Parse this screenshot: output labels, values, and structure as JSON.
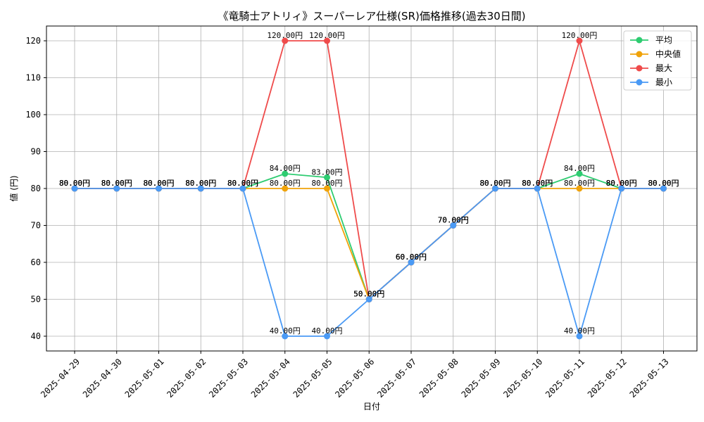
{
  "chart_data": {
    "type": "line",
    "title": "《竜騎士アトリィ》スーパーレア仕様(SR)価格推移(過去30日間)",
    "xlabel": "日付",
    "ylabel": "値 (円)",
    "ylim": [
      36,
      124
    ],
    "yticks": [
      40,
      50,
      60,
      70,
      80,
      90,
      100,
      110,
      120
    ],
    "grid": true,
    "legend_position": "top-right",
    "label_suffix": "円",
    "categories": [
      "2025-04-29",
      "2025-04-30",
      "2025-05-01",
      "2025-05-02",
      "2025-05-03",
      "2025-05-04",
      "2025-05-05",
      "2025-05-06",
      "2025-05-07",
      "2025-05-08",
      "2025-05-09",
      "2025-05-10",
      "2025-05-11",
      "2025-05-12",
      "2025-05-13"
    ],
    "series": [
      {
        "name": "平均",
        "color": "#2ecc71",
        "values": [
          80,
          80,
          80,
          80,
          80,
          84,
          83,
          50,
          60,
          70,
          80,
          80,
          84,
          80,
          80
        ]
      },
      {
        "name": "中央値",
        "color": "#f0a30a",
        "values": [
          80,
          80,
          80,
          80,
          80,
          80,
          80,
          50,
          60,
          70,
          80,
          80,
          80,
          80,
          80
        ]
      },
      {
        "name": "最大",
        "color": "#ef4b4b",
        "values": [
          80,
          80,
          80,
          80,
          80,
          120,
          120,
          50,
          60,
          70,
          80,
          80,
          120,
          80,
          80
        ]
      },
      {
        "name": "最小",
        "color": "#4a9af5",
        "values": [
          80,
          80,
          80,
          80,
          80,
          40,
          40,
          50,
          60,
          70,
          80,
          80,
          40,
          80,
          80
        ]
      }
    ]
  }
}
